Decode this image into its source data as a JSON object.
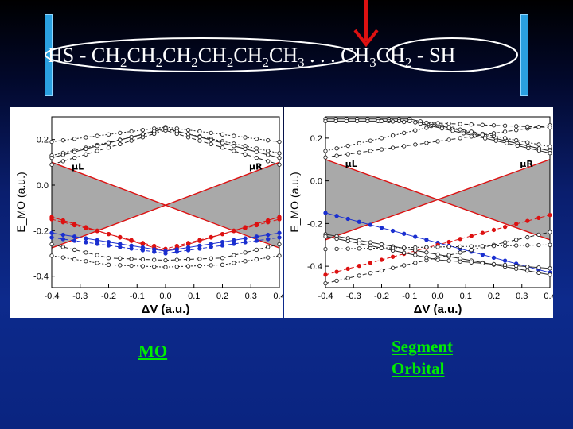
{
  "title": {
    "parts": [
      {
        "t": "HS - CH"
      },
      {
        "s": "2"
      },
      {
        "t": "CH"
      },
      {
        "s": "2"
      },
      {
        "t": "CH"
      },
      {
        "s": "2"
      },
      {
        "t": "CH"
      },
      {
        "s": "2"
      },
      {
        "t": "CH"
      },
      {
        "s": "2"
      },
      {
        "t": "CH"
      },
      {
        "s": "3"
      },
      {
        "t": " . . . CH"
      },
      {
        "s": "3"
      },
      {
        "t": "CH"
      },
      {
        "s": "2"
      },
      {
        "t": " - SH"
      }
    ]
  },
  "captions": {
    "left": "MO",
    "right_line1": "Segment",
    "right_line2": "Orbital"
  },
  "colors": {
    "red": "#dd1111",
    "blue": "#1a2fd0",
    "black": "#222222",
    "band": "#9a9a9a",
    "caption": "#00ee00"
  },
  "chart_data": [
    {
      "type": "line",
      "xlabel": "ΔV (a.u.)",
      "ylabel": "E_MO (a.u.)",
      "xlim": [
        -0.4,
        0.4
      ],
      "ylim": [
        -0.45,
        0.3
      ],
      "xticks": [
        "-0.4",
        "-0.3",
        "-0.2",
        "-0.1",
        "0.0",
        "0.1",
        "0.2",
        "0.3",
        "0.4"
      ],
      "yticks": [
        "0.2",
        "0.0",
        "-0.2",
        "-0.4"
      ],
      "annotations": {
        "mu_left": "μL",
        "mu_right": "μR"
      },
      "series": [
        {
          "color": "black",
          "dash": "2,2",
          "marker": "o",
          "x": [
            -0.4,
            0.0,
            0.4
          ],
          "y": [
            0.19,
            0.255,
            0.19
          ]
        },
        {
          "color": "black",
          "dash": "2,2",
          "marker": "o",
          "x": [
            -0.4,
            0.0,
            0.4
          ],
          "y": [
            0.13,
            0.245,
            0.14
          ]
        },
        {
          "color": "black",
          "dash": "5,3",
          "marker": "o",
          "x": [
            -0.4,
            0.0,
            0.4
          ],
          "y": [
            0.09,
            0.24,
            0.09
          ]
        },
        {
          "color": "black",
          "dash": "",
          "marker": "o",
          "x": [
            -0.4,
            0.0,
            0.4
          ],
          "y": [
            0.12,
            0.25,
            0.12
          ]
        },
        {
          "color": "red",
          "dash": "",
          "marker": "o",
          "x": [
            -0.4,
            0.0,
            0.4
          ],
          "y": [
            -0.14,
            -0.29,
            -0.14
          ]
        },
        {
          "color": "red",
          "dash": "5,3",
          "marker": "o",
          "x": [
            -0.4,
            0.0,
            0.4
          ],
          "y": [
            -0.15,
            -0.28,
            -0.15
          ]
        },
        {
          "color": "blue",
          "dash": "",
          "marker": "o",
          "x": [
            -0.4,
            0.0,
            0.4
          ],
          "y": [
            -0.21,
            -0.29,
            -0.21
          ]
        },
        {
          "color": "blue",
          "dash": "5,3",
          "marker": "o",
          "x": [
            -0.4,
            0.0,
            0.4
          ],
          "y": [
            -0.23,
            -0.3,
            -0.23
          ]
        },
        {
          "color": "black",
          "dash": "2,2",
          "marker": "o",
          "x": [
            -0.4,
            -0.2,
            0.0,
            0.2,
            0.4
          ],
          "y": [
            -0.31,
            -0.35,
            -0.36,
            -0.35,
            -0.31
          ]
        },
        {
          "color": "black",
          "dash": "5,3",
          "marker": "o",
          "x": [
            -0.4,
            -0.2,
            0.0,
            0.2,
            0.4
          ],
          "y": [
            -0.26,
            -0.32,
            -0.33,
            -0.32,
            -0.26
          ]
        }
      ]
    },
    {
      "type": "line",
      "xlabel": "ΔV (a.u.)",
      "ylabel": "E_MO (a.u.)",
      "xlim": [
        -0.4,
        0.4
      ],
      "ylim": [
        -0.5,
        0.3
      ],
      "xticks": [
        "-0.4",
        "-0.3",
        "-0.2",
        "-0.1",
        "0.0",
        "0.1",
        "0.2",
        "0.3",
        "0.4"
      ],
      "yticks": [
        "0.2",
        "0.0",
        "-0.2",
        "-0.4"
      ],
      "annotations": {
        "mu_left": "μL",
        "mu_right": "μR"
      },
      "series": [
        {
          "color": "black",
          "dash": "",
          "marker": "o",
          "x": [
            -0.4,
            -0.1,
            0.4
          ],
          "y": [
            0.29,
            0.29,
            0.14
          ]
        },
        {
          "color": "black",
          "dash": "",
          "marker": "o",
          "x": [
            -0.4,
            -0.1,
            0.4
          ],
          "y": [
            0.28,
            0.28,
            0.13
          ]
        },
        {
          "color": "black",
          "dash": "2,2",
          "marker": "o",
          "x": [
            -0.4,
            0.0,
            0.4
          ],
          "y": [
            0.14,
            0.26,
            0.16
          ]
        },
        {
          "color": "black",
          "dash": "5,3",
          "marker": "o",
          "x": [
            -0.4,
            0.4
          ],
          "y": [
            0.11,
            0.26
          ]
        },
        {
          "color": "black",
          "dash": "5,3",
          "marker": "o",
          "x": [
            -0.2,
            0.4
          ],
          "y": [
            0.28,
            0.25
          ]
        },
        {
          "color": "blue",
          "dash": "",
          "marker": "o",
          "x": [
            -0.4,
            0.4
          ],
          "y": [
            -0.15,
            -0.43
          ]
        },
        {
          "color": "red",
          "dash": "5,3",
          "marker": "o",
          "x": [
            -0.4,
            0.4
          ],
          "y": [
            -0.44,
            -0.16
          ]
        },
        {
          "color": "black",
          "dash": "",
          "marker": "o",
          "x": [
            -0.4,
            0.4
          ],
          "y": [
            -0.25,
            -0.44
          ]
        },
        {
          "color": "black",
          "dash": "5,3",
          "marker": "o",
          "x": [
            -0.4,
            0.4
          ],
          "y": [
            -0.48,
            -0.24
          ]
        },
        {
          "color": "black",
          "dash": "",
          "marker": "o",
          "x": [
            -0.4,
            0.0,
            0.4
          ],
          "y": [
            -0.26,
            -0.37,
            -0.41
          ]
        },
        {
          "color": "black",
          "dash": "2,2",
          "marker": "o",
          "x": [
            -0.4,
            0.4
          ],
          "y": [
            -0.32,
            -0.3
          ]
        }
      ]
    }
  ]
}
